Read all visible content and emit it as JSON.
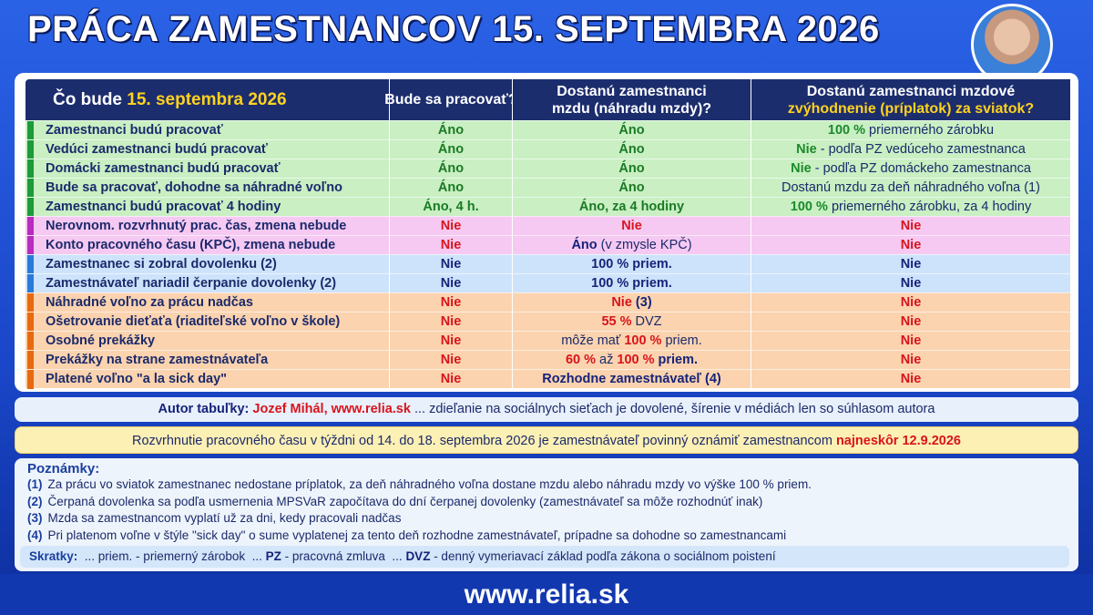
{
  "header": {
    "title": "PRÁCA ZAMESTNANCOV 15. SEPTEMBRA 2026"
  },
  "table": {
    "columns": [
      [
        [
          {
            "text": "Čo bude ",
            "color": "#ffffff"
          },
          {
            "text": "15. septembra 2026",
            "color": "#ffd21f"
          }
        ]
      ],
      [
        [
          {
            "text": "Bude sa pracovať?",
            "color": "#ffffff"
          }
        ]
      ],
      [
        [
          {
            "text": "Dostanú zamestnanci",
            "color": "#ffffff"
          }
        ],
        [
          {
            "text": "mzdu (náhradu mzdy)?",
            "color": "#ffffff"
          }
        ]
      ],
      [
        [
          {
            "text": "Dostanú zamestnanci mzdové",
            "color": "#ffffff"
          }
        ],
        [
          {
            "text": "zvýhodnenie (príplatok) za sviatok?",
            "color": "#ffd21f"
          }
        ]
      ]
    ],
    "groups": [
      {
        "background": "#c9efc3",
        "accent": "#1e9a3a",
        "rows": [
          [
            [
              "Zamestnanci budú pracovať"
            ],
            [
              {
                "text": "Áno",
                "color": "#1a7a24"
              }
            ],
            [
              {
                "text": "Áno",
                "color": "#1a7a24"
              }
            ],
            [
              {
                "text": "100 %",
                "color": "#1a8a2a"
              },
              " priemerného zárobku"
            ]
          ],
          [
            [
              "Vedúci zamestnanci budú pracovať"
            ],
            [
              {
                "text": "Áno",
                "color": "#1a7a24"
              }
            ],
            [
              {
                "text": "Áno",
                "color": "#1a7a24"
              }
            ],
            [
              {
                "text": "Nie",
                "color": "#1a8a2a"
              },
              " - podľa PZ vedúceho zamestnanca"
            ]
          ],
          [
            [
              "Domácki zamestnanci budú pracovať"
            ],
            [
              {
                "text": "Áno",
                "color": "#1a7a24"
              }
            ],
            [
              {
                "text": "Áno",
                "color": "#1a7a24"
              }
            ],
            [
              {
                "text": "Nie",
                "color": "#1a8a2a"
              },
              " - podľa PZ domáckeho zamestnanca"
            ]
          ],
          [
            [
              "Bude sa pracovať, dohodne sa náhradné voľno"
            ],
            [
              {
                "text": "Áno",
                "color": "#1a7a24"
              }
            ],
            [
              {
                "text": "Áno",
                "color": "#1a7a24"
              }
            ],
            [
              "Dostanú mzdu za deň náhradného voľna (1)"
            ]
          ],
          [
            [
              "Zamestnanci budú pracovať 4 hodiny"
            ],
            [
              {
                "text": "Áno, 4 h.",
                "color": "#1a7a24"
              }
            ],
            [
              {
                "text": "Áno, za 4 hodiny",
                "color": "#1a7a24"
              }
            ],
            [
              {
                "text": "100 %",
                "color": "#1a8a2a"
              },
              " priemerného zárobku, za 4 hodiny"
            ]
          ]
        ]
      },
      {
        "background": "#f6c9f2",
        "accent": "#b82cc0",
        "rows": [
          [
            [
              "Nerovnom. rozvrhnutý prac. čas, zmena nebude"
            ],
            [
              {
                "text": "Nie",
                "color": "#d8141c"
              }
            ],
            [
              {
                "text": "Nie",
                "color": "#d8141c"
              }
            ],
            [
              {
                "text": "Nie",
                "color": "#d8141c"
              }
            ]
          ],
          [
            [
              "Konto pracovného času (KPČ), zmena nebude"
            ],
            [
              {
                "text": "Nie",
                "color": "#d8141c"
              }
            ],
            [
              {
                "text": "Áno",
                "color": "#16237a"
              },
              " (v zmysle KPČ)"
            ],
            [
              {
                "text": "Nie",
                "color": "#d8141c"
              }
            ]
          ]
        ]
      },
      {
        "background": "#cde3fb",
        "accent": "#2a7ad8",
        "rows": [
          [
            [
              "Zamestnanec si zobral dovolenku (2)"
            ],
            [
              {
                "text": "Nie",
                "color": "#16237a"
              }
            ],
            [
              {
                "text": "100 % priem.",
                "color": "#16237a"
              }
            ],
            [
              {
                "text": "Nie",
                "color": "#16237a"
              }
            ]
          ],
          [
            [
              "Zamestnávateľ nariadil čerpanie dovolenky (2)"
            ],
            [
              {
                "text": "Nie",
                "color": "#16237a"
              }
            ],
            [
              {
                "text": "100 % priem.",
                "color": "#16237a"
              }
            ],
            [
              {
                "text": "Nie",
                "color": "#16237a"
              }
            ]
          ]
        ]
      },
      {
        "background": "#fbd3af",
        "accent": "#e86a10",
        "rows": [
          [
            [
              "Náhradné voľno za prácu nadčas"
            ],
            [
              {
                "text": "Nie",
                "color": "#d8141c"
              }
            ],
            [
              {
                "text": "Nie",
                "color": "#d8141c"
              },
              {
                "text": " (3)",
                "color": "#16237a"
              }
            ],
            [
              {
                "text": "Nie",
                "color": "#d8141c"
              }
            ]
          ],
          [
            [
              "Ošetrovanie dieťaťa (riaditeľské voľno v škole)"
            ],
            [
              {
                "text": "Nie",
                "color": "#d8141c"
              }
            ],
            [
              {
                "text": "55 %",
                "color": "#d8141c"
              },
              " DVZ"
            ],
            [
              {
                "text": "Nie",
                "color": "#d8141c"
              }
            ]
          ],
          [
            [
              "Osobné prekážky"
            ],
            [
              {
                "text": "Nie",
                "color": "#d8141c"
              }
            ],
            [
              "môže mať ",
              {
                "text": "100 %",
                "color": "#d8141c"
              },
              " priem."
            ],
            [
              {
                "text": "Nie",
                "color": "#d8141c"
              }
            ]
          ],
          [
            [
              "Prekážky na strane zamestnávateľa"
            ],
            [
              {
                "text": "Nie",
                "color": "#d8141c"
              }
            ],
            [
              {
                "text": "60 %",
                "color": "#d8141c"
              },
              " až ",
              {
                "text": "100 %",
                "color": "#d8141c"
              },
              {
                "text": " priem.",
                "color": "#16237a"
              }
            ],
            [
              {
                "text": "Nie",
                "color": "#d8141c"
              }
            ]
          ],
          [
            [
              "Platené voľno \"a la sick day\""
            ],
            [
              {
                "text": "Nie",
                "color": "#d8141c"
              }
            ],
            [
              {
                "text": "Rozhodne zamestnávateľ (4)",
                "color": "#16237a"
              }
            ],
            [
              {
                "text": "Nie",
                "color": "#d8141c"
              }
            ]
          ]
        ]
      }
    ]
  },
  "author": [
    {
      "text": "Autor tabuľky: ",
      "color": "#16237a"
    },
    {
      "text": "Jozef Mihál, www.relia.sk",
      "color": "#d8141c"
    },
    " ... zdieľanie na sociálnych sieťach je dovolené, šírenie v médiách len so súhlasom autora"
  ],
  "notice": [
    "Rozvrhnutie pracovného času v týždni od 14. do 18. septembra 2026 je zamestnávateľ povinný oznámiť zamestnancom ",
    {
      "text": "najneskôr 12.9.2026",
      "color": "#d8141c"
    }
  ],
  "notes": {
    "title": "Poznámky:",
    "items": [
      {
        "marker": "(1)",
        "text": "Za prácu vo sviatok zamestnanec nedostane príplatok, za deň náhradného voľna dostane mzdu alebo náhradu mzdy vo výške 100 % priem."
      },
      {
        "marker": "(2)",
        "text": "Čerpaná dovolenka sa podľa usmernenia MPSVaR započítava do dní čerpanej dovolenky (zamestnávateľ sa môže rozhodnúť inak)"
      },
      {
        "marker": "(3)",
        "text": "Mzda sa zamestnancom vyplatí už za dni, kedy pracovali nadčas"
      },
      {
        "marker": "(4)",
        "text": "Pri platenom voľne v štýle \"sick day\" o sume vyplatenej za tento deň rozhodne zamestnávateľ, prípadne sa dohodne so zamestnancami"
      }
    ]
  },
  "abbreviations": [
    {
      "text": "Skratky:",
      "color": "#1b3fa0"
    },
    "  ... priem. - priemerný zárobok  ... ",
    {
      "text": "PZ",
      "color": "#16237a"
    },
    " - pracovná zmluva  ... ",
    {
      "text": "DVZ",
      "color": "#16237a"
    },
    " - denný vymeriavací základ podľa zákona o sociálnom poistení"
  ],
  "footer": {
    "url": "www.relia.sk"
  }
}
